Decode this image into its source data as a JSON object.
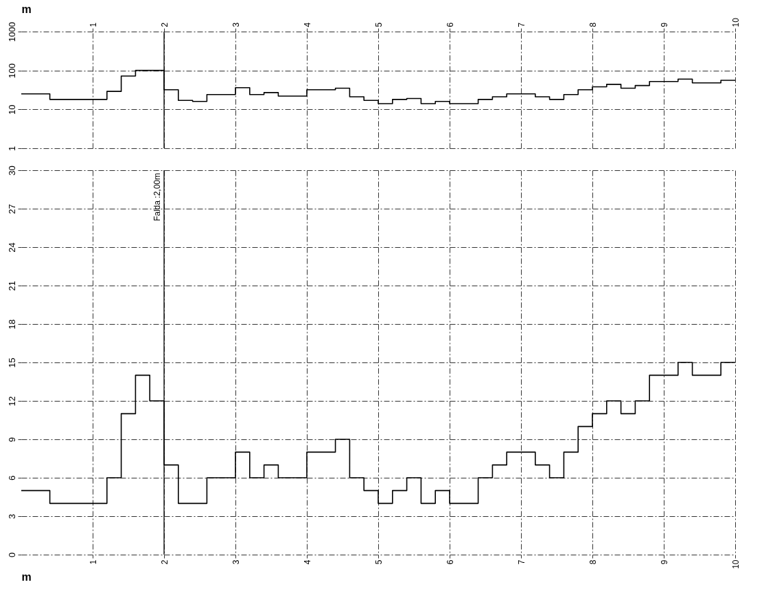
{
  "chart_data": [
    {
      "type": "step",
      "xlabel": "m",
      "log": "y",
      "xlim": [
        0,
        10
      ],
      "xticks": [
        1,
        2,
        3,
        4,
        5,
        6,
        7,
        8,
        9,
        10
      ],
      "ylim": [
        1,
        1000
      ],
      "yticks": [
        1,
        10,
        100,
        1000
      ],
      "grid": true,
      "line_style": "solid",
      "marker": "none",
      "x": [
        0,
        0.2,
        0.4,
        0.6,
        0.8,
        1.0,
        1.2,
        1.4,
        1.6,
        1.8,
        2.0,
        2.2,
        2.4,
        2.6,
        2.8,
        3.0,
        3.2,
        3.4,
        3.6,
        3.8,
        4.0,
        4.2,
        4.4,
        4.6,
        4.8,
        5.0,
        5.2,
        5.4,
        5.6,
        5.8,
        6.0,
        6.2,
        6.4,
        6.6,
        6.8,
        7.0,
        7.2,
        7.4,
        7.6,
        7.8,
        8.0,
        8.2,
        8.4,
        8.6,
        8.8,
        9.0,
        9.2,
        9.4,
        9.6,
        9.8,
        10
      ],
      "series": [
        {
          "color": "#000000",
          "values": [
            25,
            25,
            18,
            18,
            18,
            18,
            29,
            72,
            100,
            100,
            32,
            17,
            16,
            24,
            24,
            36,
            24,
            27,
            22,
            22,
            32,
            32,
            35,
            21,
            17,
            14,
            18,
            19,
            14,
            16,
            14,
            14,
            18,
            21,
            25,
            25,
            21,
            18,
            24,
            32,
            38,
            44,
            35,
            41,
            52,
            52,
            60,
            48,
            48,
            56,
            56
          ]
        }
      ],
      "ref_lines": [
        {
          "axis": "x",
          "value": 2,
          "line_style": "solid"
        }
      ]
    },
    {
      "type": "step",
      "xlabel": "m",
      "xlim": [
        0,
        10
      ],
      "xticks": [
        1,
        2,
        3,
        4,
        5,
        6,
        7,
        8,
        9,
        10
      ],
      "ylim": [
        0,
        30
      ],
      "yticks": [
        0,
        3,
        6,
        9,
        12,
        15,
        18,
        21,
        24,
        27,
        30
      ],
      "grid": true,
      "line_style": "solid",
      "marker": "none",
      "x": [
        0,
        0.2,
        0.4,
        0.6,
        0.8,
        1.0,
        1.2,
        1.4,
        1.6,
        1.8,
        2.0,
        2.2,
        2.4,
        2.6,
        2.8,
        3.0,
        3.2,
        3.4,
        3.6,
        3.8,
        4.0,
        4.2,
        4.4,
        4.6,
        4.8,
        5.0,
        5.2,
        5.4,
        5.6,
        5.8,
        6.0,
        6.2,
        6.4,
        6.6,
        6.8,
        7.0,
        7.2,
        7.4,
        7.6,
        7.8,
        8.0,
        8.2,
        8.4,
        8.6,
        8.8,
        9.0,
        9.2,
        9.4,
        9.6,
        9.8,
        10
      ],
      "series": [
        {
          "color": "#000000",
          "values": [
            5,
            5,
            4,
            4,
            4,
            4,
            6,
            11,
            14,
            12,
            7,
            4,
            4,
            6,
            6,
            8,
            6,
            7,
            6,
            6,
            8,
            8,
            9,
            6,
            5,
            4,
            5,
            6,
            4,
            5,
            4,
            4,
            6,
            7,
            8,
            8,
            7,
            6,
            8,
            10,
            11,
            12,
            11,
            12,
            14,
            14,
            15,
            14,
            14,
            15,
            15
          ]
        }
      ],
      "ref_lines": [
        {
          "axis": "x",
          "value": 2,
          "label": "Falda :2,00m",
          "line_style": "solid"
        }
      ]
    }
  ]
}
